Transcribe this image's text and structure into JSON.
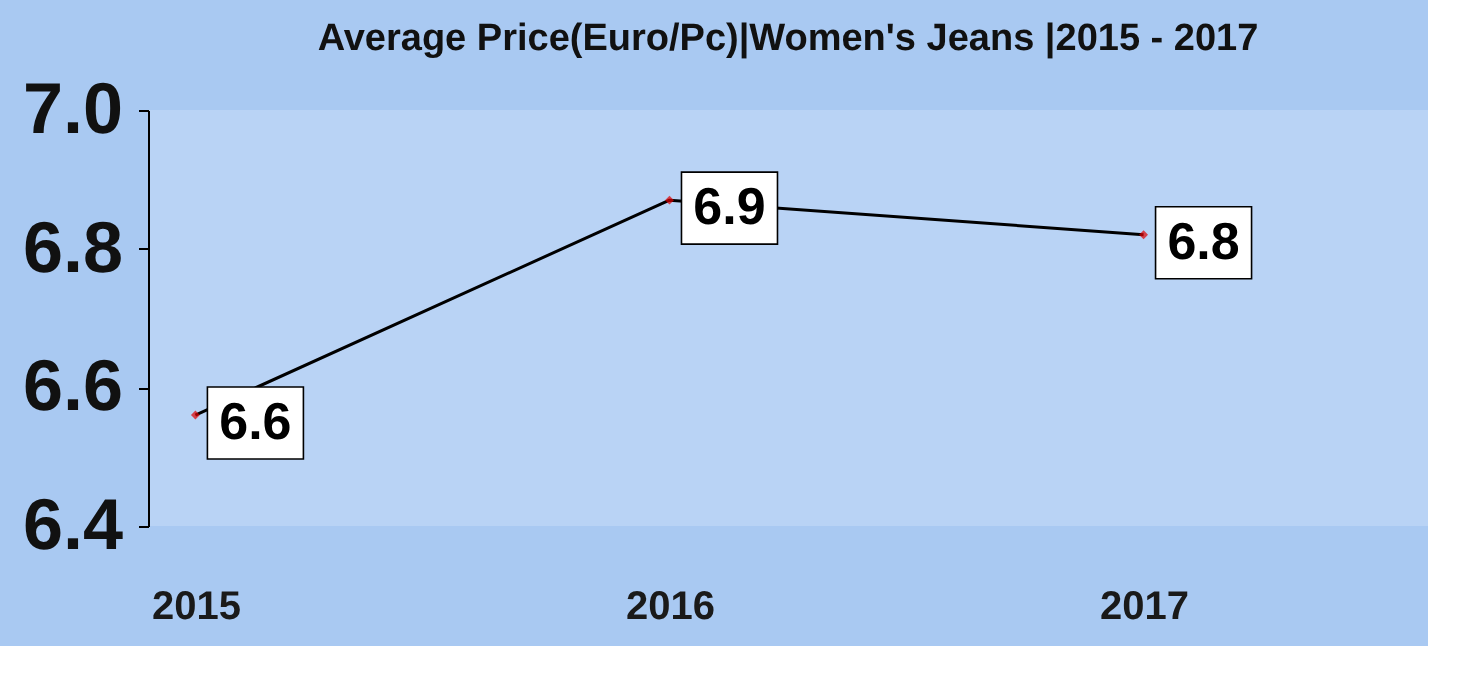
{
  "chart_data": {
    "type": "line",
    "title": "Average Price(Euro/Pc)|Women's Jeans |2015 - 2017",
    "categories": [
      "2015",
      "2016",
      "2017"
    ],
    "series": [
      {
        "color": "#000000",
        "values": [
          6.56,
          6.87,
          6.82
        ],
        "value_labels": [
          "6.6",
          "6.9",
          "6.8"
        ]
      }
    ],
    "ylim": [
      6.4,
      7.0
    ],
    "yticks": [
      {
        "value": 6.4,
        "label": "6.4"
      },
      {
        "value": 6.6,
        "label": "6.6"
      },
      {
        "value": 6.8,
        "label": "6.8"
      },
      {
        "value": 7.0,
        "label": "7.0"
      }
    ],
    "grid": false,
    "marker": "diamond",
    "line_style": "solid"
  }
}
